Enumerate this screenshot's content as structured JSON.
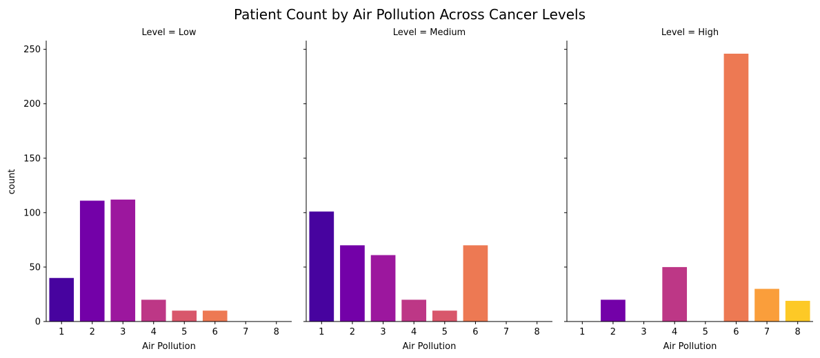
{
  "chart_data": {
    "type": "bar",
    "title": "Patient Count by Air Pollution Across Cancer Levels",
    "xlabel": "Air Pollution",
    "ylabel": "count",
    "ylim": [
      0,
      258
    ],
    "yticks": [
      0,
      50,
      100,
      150,
      200,
      250
    ],
    "categories": [
      "1",
      "2",
      "3",
      "4",
      "5",
      "6",
      "7",
      "8"
    ],
    "palette": [
      "#47039f",
      "#7301a8",
      "#9c179e",
      "#bd3786",
      "#d8576b",
      "#ed7953",
      "#fa9e3b",
      "#fdc926"
    ],
    "panels": [
      {
        "title": "Level = Low",
        "values": [
          40,
          111,
          112,
          20,
          10,
          10,
          0,
          0
        ]
      },
      {
        "title": "Level = Medium",
        "values": [
          101,
          70,
          61,
          20,
          10,
          70,
          0,
          0
        ]
      },
      {
        "title": "Level = High",
        "values": [
          0,
          20,
          0,
          50,
          0,
          246,
          30,
          19
        ]
      }
    ],
    "grid": false,
    "legend": "none"
  }
}
